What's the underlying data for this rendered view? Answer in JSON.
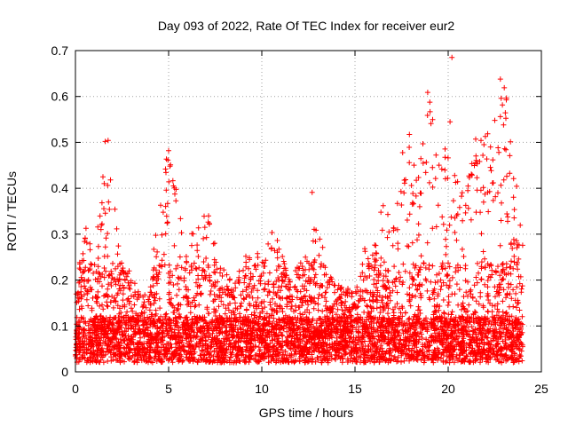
{
  "chart_data": {
    "type": "scatter",
    "title": "Day 093 of 2022, Rate Of TEC Index for receiver eur2",
    "xlabel": "GPS time / hours",
    "ylabel": "ROTI / TECUs",
    "xlim": [
      0,
      25
    ],
    "ylim": [
      0,
      0.7
    ],
    "xticks": [
      "0",
      "5",
      "10",
      "15",
      "20",
      "25"
    ],
    "yticks": [
      "0",
      "0.1",
      "0.2",
      "0.3",
      "0.4",
      "0.5",
      "0.6",
      "0.7"
    ],
    "grid": true,
    "marker": "+",
    "color": "#ff0000",
    "envelope_x": [
      0,
      0.5,
      1,
      1.5,
      1.8,
      2,
      2.5,
      3,
      3.5,
      4,
      4.5,
      5,
      5.5,
      6,
      6.5,
      7,
      7.5,
      8,
      8.5,
      9,
      9.5,
      10,
      10.5,
      11,
      11.5,
      12,
      12.5,
      13,
      13.5,
      14,
      14.5,
      15,
      15.5,
      16,
      16.5,
      17,
      17.5,
      18,
      18.5,
      19,
      19.5,
      20,
      20.5,
      21,
      21.5,
      22,
      22.5,
      23,
      23.5,
      24
    ],
    "envelope_y": [
      0.15,
      0.3,
      0.25,
      0.42,
      0.5,
      0.42,
      0.22,
      0.2,
      0.15,
      0.15,
      0.4,
      0.46,
      0.38,
      0.3,
      0.28,
      0.35,
      0.3,
      0.2,
      0.18,
      0.25,
      0.26,
      0.22,
      0.3,
      0.25,
      0.18,
      0.22,
      0.24,
      0.36,
      0.2,
      0.17,
      0.17,
      0.15,
      0.25,
      0.26,
      0.35,
      0.3,
      0.45,
      0.52,
      0.44,
      0.6,
      0.5,
      0.45,
      0.42,
      0.44,
      0.5,
      0.54,
      0.46,
      0.63,
      0.42,
      0.32
    ],
    "outliers": [
      {
        "x": 1.6,
        "y": 0.502
      },
      {
        "x": 5.0,
        "y": 0.482
      },
      {
        "x": 12.7,
        "y": 0.391
      },
      {
        "x": 18.9,
        "y": 0.609
      },
      {
        "x": 20.1,
        "y": 0.545
      },
      {
        "x": 20.2,
        "y": 0.685
      },
      {
        "x": 22.5,
        "y": 0.548
      },
      {
        "x": 22.8,
        "y": 0.638
      }
    ]
  }
}
